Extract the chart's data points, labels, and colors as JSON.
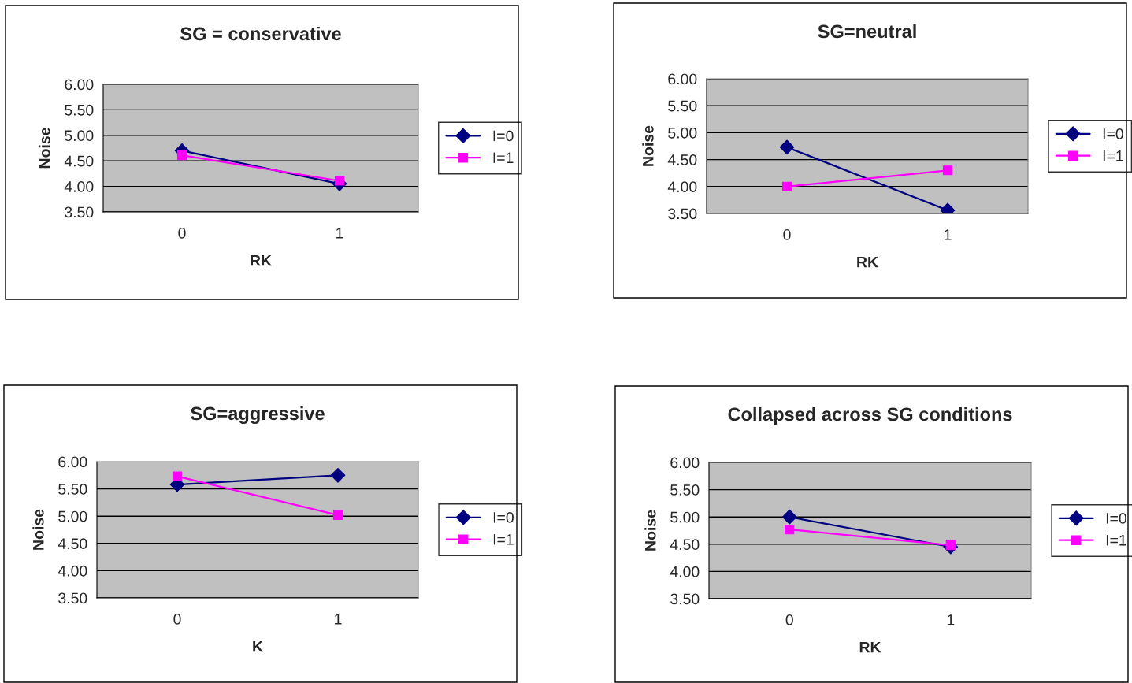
{
  "chart_data": [
    {
      "type": "line",
      "title": "SG = conservative",
      "xlabel": "RK",
      "ylabel": "Noise",
      "categories": [
        "0",
        "1"
      ],
      "ylim": [
        3.5,
        6.0
      ],
      "yticks": [
        {
          "value": 3.5,
          "label": "3.50"
        },
        {
          "value": 4.0,
          "label": "4.00"
        },
        {
          "value": 4.5,
          "label": "4.50"
        },
        {
          "value": 5.0,
          "label": "5.00"
        },
        {
          "value": 5.5,
          "label": "5.50"
        },
        {
          "value": 6.0,
          "label": "6.00"
        }
      ],
      "grid": "y",
      "legend": "right",
      "series": [
        {
          "name": "I=0",
          "color": "#000080",
          "marker": "diamond",
          "values": [
            4.7,
            4.05
          ]
        },
        {
          "name": "I=1",
          "color": "#ff00ff",
          "marker": "square",
          "values": [
            4.61,
            4.11
          ]
        }
      ]
    },
    {
      "type": "line",
      "title": "SG=neutral",
      "xlabel": "RK",
      "ylabel": "Noise",
      "categories": [
        "0",
        "1"
      ],
      "ylim": [
        3.5,
        6.0
      ],
      "yticks": [
        {
          "value": 3.5,
          "label": "3.50"
        },
        {
          "value": 4.0,
          "label": "4.00"
        },
        {
          "value": 4.5,
          "label": "4.50"
        },
        {
          "value": 5.0,
          "label": "5.00"
        },
        {
          "value": 5.5,
          "label": "5.50"
        },
        {
          "value": 6.0,
          "label": "6.00"
        }
      ],
      "grid": "y",
      "legend": "right",
      "series": [
        {
          "name": "I=0",
          "color": "#000080",
          "marker": "diamond",
          "values": [
            4.73,
            3.56
          ]
        },
        {
          "name": "I=1",
          "color": "#ff00ff",
          "marker": "square",
          "values": [
            4.0,
            4.3
          ]
        }
      ]
    },
    {
      "type": "line",
      "title": "SG=aggressive",
      "xlabel": "K",
      "ylabel": "Noise",
      "categories": [
        "0",
        "1"
      ],
      "ylim": [
        3.5,
        6.0
      ],
      "yticks": [
        {
          "value": 3.5,
          "label": "3.50"
        },
        {
          "value": 4.0,
          "label": "4.00"
        },
        {
          "value": 4.5,
          "label": "4.50"
        },
        {
          "value": 5.0,
          "label": "5.00"
        },
        {
          "value": 5.5,
          "label": "5.50"
        },
        {
          "value": 6.0,
          "label": "6.00"
        }
      ],
      "grid": "y",
      "legend": "right",
      "series": [
        {
          "name": "I=0",
          "color": "#000080",
          "marker": "diamond",
          "values": [
            5.58,
            5.75
          ]
        },
        {
          "name": "I=1",
          "color": "#ff00ff",
          "marker": "square",
          "values": [
            5.73,
            5.02
          ]
        }
      ]
    },
    {
      "type": "line",
      "title": "Collapsed across SG conditions",
      "xlabel": "RK",
      "ylabel": "Noise",
      "categories": [
        "0",
        "1"
      ],
      "ylim": [
        3.5,
        6.0
      ],
      "yticks": [
        {
          "value": 3.5,
          "label": "3.50"
        },
        {
          "value": 4.0,
          "label": "4.00"
        },
        {
          "value": 4.5,
          "label": "4.50"
        },
        {
          "value": 5.0,
          "label": "5.00"
        },
        {
          "value": 5.5,
          "label": "5.50"
        },
        {
          "value": 6.0,
          "label": "6.00"
        }
      ],
      "grid": "y",
      "legend": "right",
      "series": [
        {
          "name": "I=0",
          "color": "#000080",
          "marker": "diamond",
          "values": [
            5.0,
            4.45
          ]
        },
        {
          "name": "I=1",
          "color": "#ff00ff",
          "marker": "square",
          "values": [
            4.77,
            4.48
          ]
        }
      ]
    }
  ]
}
